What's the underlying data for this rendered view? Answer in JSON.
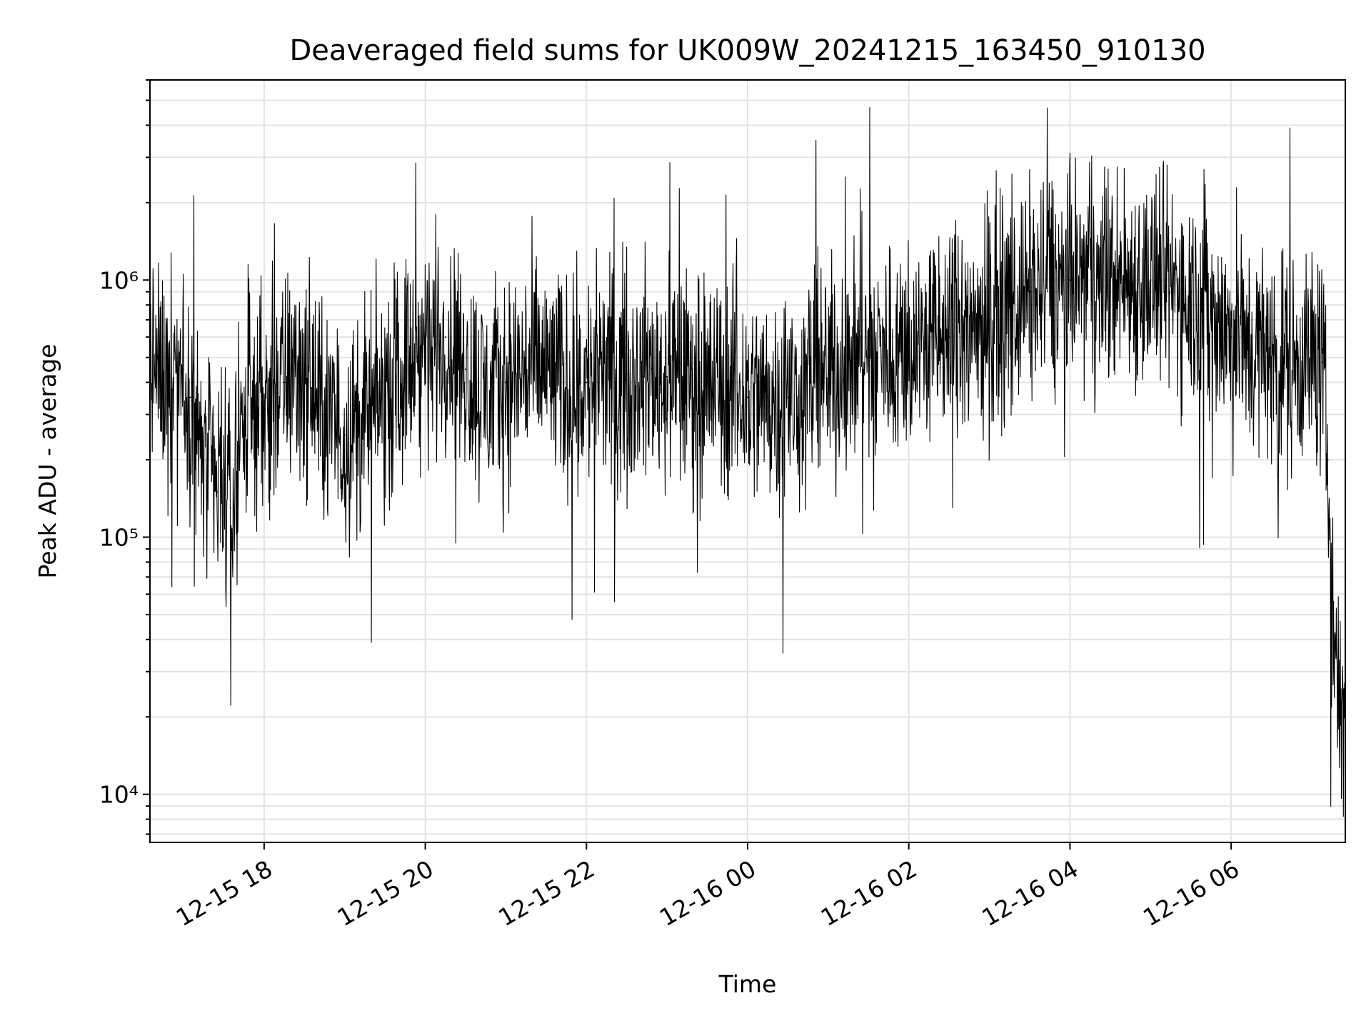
{
  "chart_data": {
    "type": "line",
    "title": "Deaveraged field sums for UK009W_20241215_163450_910130",
    "xlabel": "Time",
    "ylabel": "Peak ADU - average",
    "y_scale": "log",
    "ylim": [
      6500,
      6000000
    ],
    "xlim": [
      "2024-12-15T16:35",
      "2024-12-16T07:25"
    ],
    "grid": true,
    "x_ticks": [
      {
        "t": "2024-12-15T18:00",
        "label": "12-15 18"
      },
      {
        "t": "2024-12-15T20:00",
        "label": "12-15 20"
      },
      {
        "t": "2024-12-15T22:00",
        "label": "12-15 22"
      },
      {
        "t": "2024-12-16T00:00",
        "label": "12-16 00"
      },
      {
        "t": "2024-12-16T02:00",
        "label": "12-16 02"
      },
      {
        "t": "2024-12-16T04:00",
        "label": "12-16 04"
      },
      {
        "t": "2024-12-16T06:00",
        "label": "12-16 06"
      }
    ],
    "y_ticks": [
      {
        "v": 10000,
        "label": "10⁴"
      },
      {
        "v": 100000,
        "label": "10⁵"
      },
      {
        "v": 1000000,
        "label": "10⁶"
      }
    ],
    "series": [
      {
        "color": "#000000",
        "x": [
          "2024-12-15T16:35",
          "2024-12-15T16:45",
          "2024-12-15T16:55",
          "2024-12-15T17:05",
          "2024-12-15T17:15",
          "2024-12-15T17:25",
          "2024-12-15T17:35",
          "2024-12-15T17:45",
          "2024-12-15T17:55",
          "2024-12-15T18:05",
          "2024-12-15T18:15",
          "2024-12-15T18:25",
          "2024-12-15T18:35",
          "2024-12-15T18:45",
          "2024-12-15T19:00",
          "2024-12-15T19:15",
          "2024-12-15T19:30",
          "2024-12-15T19:45",
          "2024-12-15T20:00",
          "2024-12-15T20:15",
          "2024-12-15T20:30",
          "2024-12-15T20:45",
          "2024-12-15T21:00",
          "2024-12-15T21:15",
          "2024-12-15T21:30",
          "2024-12-15T21:45",
          "2024-12-15T22:00",
          "2024-12-15T22:30",
          "2024-12-15T23:00",
          "2024-12-15T23:30",
          "2024-12-16T00:00",
          "2024-12-16T00:30",
          "2024-12-16T01:00",
          "2024-12-16T01:30",
          "2024-12-16T02:00",
          "2024-12-16T02:30",
          "2024-12-16T03:00",
          "2024-12-16T03:30",
          "2024-12-16T04:00",
          "2024-12-16T04:30",
          "2024-12-16T05:00",
          "2024-12-16T05:30",
          "2024-12-16T06:00",
          "2024-12-16T06:30",
          "2024-12-16T07:00",
          "2024-12-16T07:08",
          "2024-12-16T07:12",
          "2024-12-16T07:16",
          "2024-12-16T07:20",
          "2024-12-16T07:25"
        ],
        "y": [
          500000,
          400000,
          500000,
          350000,
          200000,
          150000,
          130000,
          300000,
          350000,
          350000,
          400000,
          450000,
          380000,
          300000,
          250000,
          280000,
          350000,
          450000,
          550000,
          600000,
          450000,
          350000,
          400000,
          450000,
          450000,
          380000,
          400000,
          430000,
          420000,
          400000,
          350000,
          350000,
          430000,
          500000,
          550000,
          600000,
          700000,
          900000,
          1000000,
          1000000,
          1000000,
          900000,
          600000,
          500000,
          500000,
          480000,
          200000,
          50000,
          20000,
          20000
        ]
      }
    ]
  }
}
